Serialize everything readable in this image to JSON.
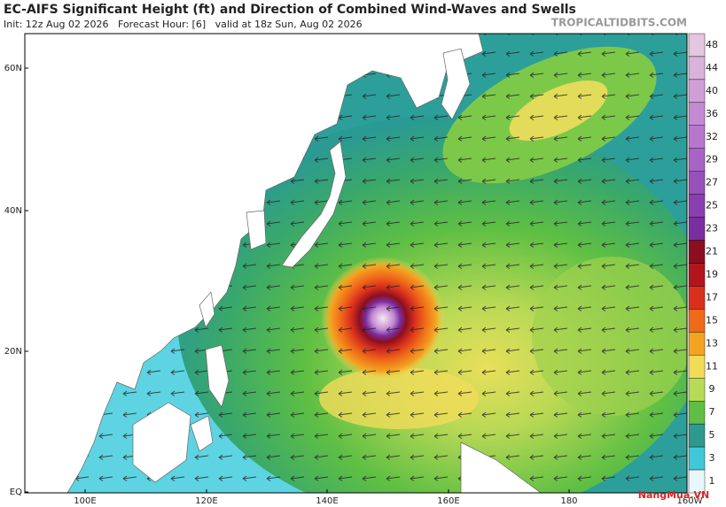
{
  "header": {
    "title": "EC-AIFS Significant Height (ft) and Direction of Combined Wind-Waves and Swells",
    "subtitle": "Init: 12z Aug 02 2026   Forecast Hour: [6]   valid at 18z Sun, Aug 02 2026",
    "site": "TROPICALTIDBITS.COM"
  },
  "map": {
    "lat_labels": [
      "60N",
      "40N",
      "20N",
      "EQ"
    ],
    "lon_labels": [
      "100E",
      "120E",
      "140E",
      "160E",
      "180",
      "160W"
    ]
  },
  "colorbar": {
    "ticks": [
      48,
      44,
      40,
      36,
      32,
      29,
      27,
      25,
      23,
      21,
      19,
      17,
      15,
      13,
      11,
      9,
      7,
      5,
      3,
      1
    ],
    "colors": [
      "#e3c6e0",
      "#d9b3dc",
      "#cfa0d8",
      "#c48ad3",
      "#b877cc",
      "#a864c4",
      "#9850bb",
      "#8a3fb1",
      "#7a2ea0",
      "#8b0f1f",
      "#b3151c",
      "#d9301e",
      "#ef6a1a",
      "#f4a321",
      "#f1dc5a",
      "#b6dc55",
      "#5fbf44",
      "#2e9a8f",
      "#41c7d6",
      "#e8f7fa"
    ]
  },
  "watermark": "NangMua.VN"
}
